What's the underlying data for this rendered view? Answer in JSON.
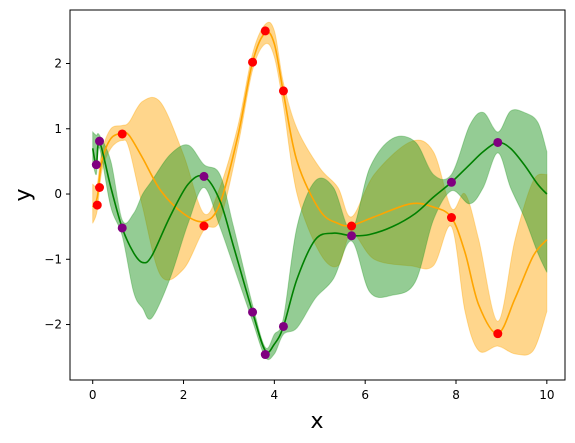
{
  "chart_data": {
    "type": "line",
    "title": "",
    "xlabel": "x",
    "ylabel": "y",
    "xlim": [
      -0.5,
      10.4
    ],
    "ylim": [
      -2.85,
      2.82
    ],
    "xticks": [
      0,
      2,
      4,
      6,
      8,
      10
    ],
    "xtick_labels": [
      "0",
      "2",
      "4",
      "6",
      "8",
      "10"
    ],
    "yticks": [
      2,
      1,
      0,
      -1,
      -2
    ],
    "ytick_labels": [
      "2",
      "1",
      "0",
      "−1",
      "−2"
    ],
    "grid": false,
    "legend": "none",
    "series": [
      {
        "color": "#ffa500",
        "point_color": "#ff0000",
        "band_color": "#ffa500",
        "points": {
          "x": [
            0.1,
            0.15,
            0.65,
            2.45,
            3.52,
            3.8,
            4.2,
            5.7,
            7.9,
            8.92
          ],
          "y": [
            -0.17,
            0.1,
            0.92,
            -0.49,
            2.02,
            2.5,
            1.58,
            -0.49,
            -0.36,
            -2.14
          ]
        },
        "mean": {
          "x": [
            0.0,
            0.1,
            0.2,
            0.4,
            0.65,
            0.8,
            1.1,
            1.5,
            2.0,
            2.45,
            2.8,
            3.2,
            3.52,
            3.8,
            4.0,
            4.2,
            4.5,
            5.0,
            5.4,
            5.7,
            6.2,
            7.0,
            7.5,
            7.9,
            8.2,
            8.5,
            8.92,
            9.3,
            9.7,
            10.0
          ],
          "y": [
            -0.2,
            -0.05,
            0.5,
            0.85,
            0.93,
            0.9,
            0.55,
            0.05,
            -0.3,
            -0.42,
            -0.15,
            0.9,
            2.02,
            2.47,
            2.3,
            1.55,
            0.5,
            -0.25,
            -0.45,
            -0.48,
            -0.35,
            -0.15,
            -0.2,
            -0.36,
            -0.9,
            -1.7,
            -2.14,
            -1.6,
            -0.95,
            -0.7
          ]
        },
        "band_upper": [
          0.15,
          0.15,
          0.65,
          1.0,
          1.05,
          1.1,
          1.42,
          1.4,
          0.6,
          -0.3,
          0.1,
          1.05,
          2.15,
          2.6,
          2.5,
          1.7,
          1.0,
          0.4,
          0.1,
          -0.35,
          0.3,
          0.8,
          0.65,
          -0.22,
          0.0,
          -0.7,
          -1.95,
          -0.7,
          0.2,
          0.3
        ],
        "band_lower": [
          -0.45,
          -0.25,
          0.35,
          0.7,
          0.82,
          0.7,
          -0.2,
          -1.25,
          -1.15,
          -0.55,
          -0.4,
          0.75,
          1.9,
          2.3,
          2.1,
          1.35,
          0.0,
          -0.9,
          -1.1,
          -0.6,
          -1.0,
          -1.1,
          -1.1,
          -0.5,
          -1.8,
          -2.4,
          -2.33,
          -2.45,
          -2.4,
          -1.8
        ]
      },
      {
        "color": "#008000",
        "point_color": "#800080",
        "band_color": "#2a9a2a",
        "points": {
          "x": [
            0.15,
            0.08,
            0.65,
            2.45,
            3.52,
            3.8,
            4.2,
            5.7,
            7.9,
            8.92
          ],
          "y": [
            0.81,
            0.45,
            -0.52,
            0.27,
            -1.81,
            -2.46,
            -2.03,
            -0.64,
            0.18,
            0.79
          ]
        },
        "mean": {
          "x": [
            0.0,
            0.08,
            0.15,
            0.4,
            0.65,
            0.9,
            1.1,
            1.3,
            1.7,
            2.1,
            2.45,
            2.8,
            3.1,
            3.52,
            3.8,
            4.0,
            4.2,
            4.5,
            4.9,
            5.3,
            5.7,
            6.1,
            6.6,
            7.1,
            7.5,
            7.9,
            8.3,
            8.6,
            8.92,
            9.2,
            9.5,
            9.8,
            10.0
          ],
          "y": [
            0.7,
            0.45,
            0.8,
            0.1,
            -0.52,
            -0.9,
            -1.05,
            -0.95,
            -0.35,
            0.15,
            0.27,
            -0.1,
            -0.8,
            -1.81,
            -2.4,
            -2.3,
            -2.03,
            -1.3,
            -0.7,
            -0.6,
            -0.64,
            -0.62,
            -0.5,
            -0.3,
            -0.05,
            0.18,
            0.45,
            0.65,
            0.79,
            0.7,
            0.45,
            0.15,
            0.0
          ]
        },
        "band_upper": [
          0.95,
          0.9,
          0.9,
          0.5,
          -0.4,
          -0.3,
          0.0,
          0.2,
          0.6,
          0.75,
          0.45,
          0.3,
          -0.5,
          -1.7,
          -2.35,
          -2.15,
          -1.9,
          -0.5,
          0.2,
          0.1,
          -0.55,
          0.4,
          0.85,
          0.8,
          0.3,
          0.3,
          1.05,
          1.25,
          0.95,
          1.27,
          1.25,
          1.1,
          0.65
        ],
        "band_lower": [
          0.5,
          0.3,
          0.7,
          -0.2,
          -0.64,
          -1.5,
          -1.75,
          -1.9,
          -1.3,
          -0.45,
          0.1,
          -0.5,
          -1.1,
          -1.95,
          -2.5,
          -2.45,
          -2.15,
          -2.05,
          -1.6,
          -1.3,
          -0.72,
          -1.5,
          -1.55,
          -1.35,
          -0.4,
          0.05,
          -0.15,
          0.1,
          0.63,
          0.1,
          -0.35,
          -0.9,
          -1.2
        ]
      }
    ]
  }
}
